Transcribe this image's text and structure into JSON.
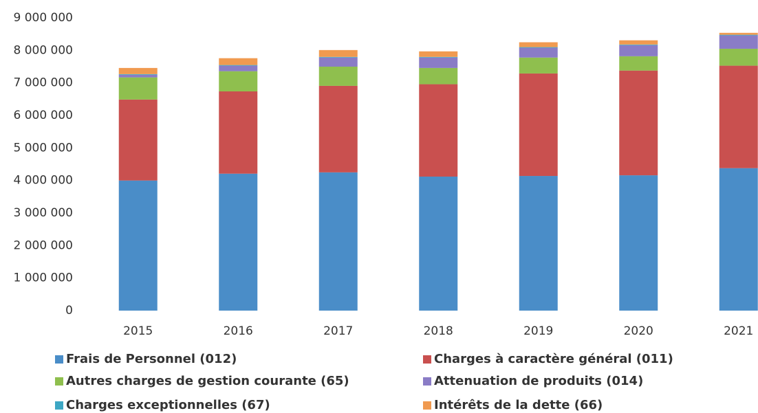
{
  "chart_data": {
    "type": "stacked_bar",
    "categories": [
      "2015",
      "2016",
      "2017",
      "2018",
      "2019",
      "2020",
      "2021"
    ],
    "series": [
      {
        "name": "Frais de Personnel (012)",
        "color": "#4a8dc8",
        "values": [
          4000000,
          4210000,
          4250000,
          4120000,
          4140000,
          4160000,
          4380000
        ]
      },
      {
        "name": "Charges  à caractère général (011)",
        "color": "#c9504f",
        "values": [
          2490000,
          2530000,
          2660000,
          2840000,
          3150000,
          3220000,
          3150000
        ]
      },
      {
        "name": "Autres charges de gestion courante (65)",
        "color": "#8fbf4e",
        "values": [
          680000,
          620000,
          590000,
          500000,
          490000,
          440000,
          520000
        ]
      },
      {
        "name": "Attenuation de produits (014)",
        "color": "#8a7cc6",
        "values": [
          80000,
          170000,
          280000,
          320000,
          300000,
          340000,
          410000
        ]
      },
      {
        "name": "Charges exceptionnelles (67)",
        "color": "#3da7c4",
        "values": [
          20000,
          20000,
          20000,
          20000,
          20000,
          20000,
          20000
        ]
      },
      {
        "name": "Intérêts de la dette (66)",
        "color": "#f09a50",
        "values": [
          190000,
          210000,
          210000,
          170000,
          150000,
          130000,
          60000
        ]
      }
    ],
    "ylim": [
      0,
      9000000
    ],
    "yticks": [
      0,
      {
        "value": 1000000,
        "label": "1 000 000"
      },
      {
        "value": 2000000,
        "label": "2 000 000"
      },
      {
        "value": 3000000,
        "label": "3 000 000"
      },
      {
        "value": 4000000,
        "label": "4 000 000"
      },
      {
        "value": 5000000,
        "label": "5 000 000"
      },
      {
        "value": 6000000,
        "label": "6 000 000"
      },
      {
        "value": 7000000,
        "label": "7 000 000"
      },
      {
        "value": 8000000,
        "label": "8 000 000"
      },
      {
        "value": 9000000,
        "label": "9 000 000"
      }
    ],
    "grid": false
  }
}
